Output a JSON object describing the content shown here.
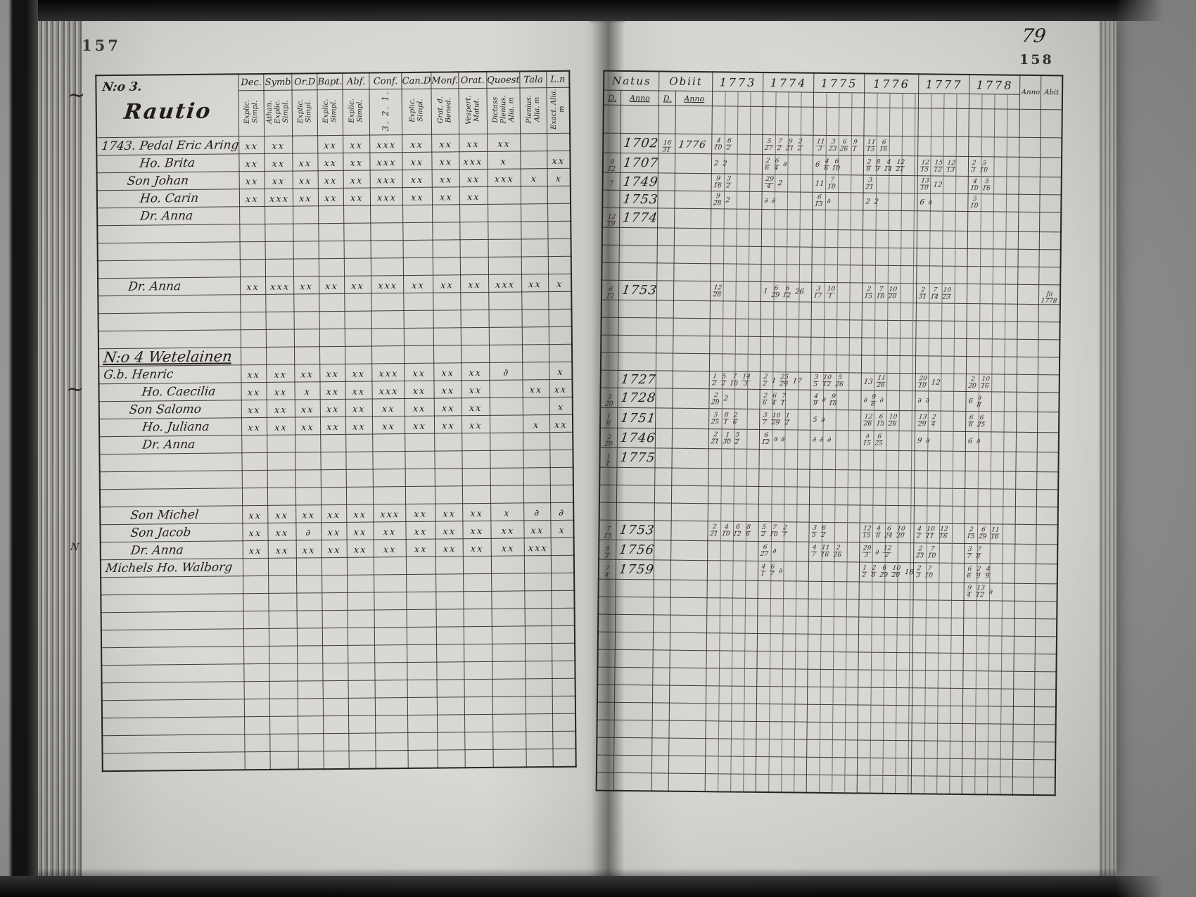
{
  "page_left": {
    "page_number": "157",
    "heading": {
      "no": "N:o 3.",
      "family": "Rautio"
    },
    "columns": [
      {
        "label": "Dec.",
        "sub": "Explic. Simpl."
      },
      {
        "label": "Symb",
        "sub": "Athan. Explic. Simpl."
      },
      {
        "label": "Or.D",
        "sub": "Explic. Simpl."
      },
      {
        "label": "Bapt.",
        "sub": "Explic. Simpl."
      },
      {
        "label": "Abf.",
        "sub": "Explic. Simpl."
      },
      {
        "label": "Conf.",
        "sub": "3. 2. 1.",
        "big": true
      },
      {
        "label": "Can.D",
        "sub": "Explic. Simpl."
      },
      {
        "label": "Monf.",
        "sub": "Grat. d. Bened."
      },
      {
        "label": "Orat.",
        "sub": "Vespert. Matut."
      },
      {
        "label": "Quoest",
        "sub": "Dictass Plenius. Alia. m"
      },
      {
        "label": "Tala",
        "sub": "Plenius. Alia. m"
      },
      {
        "label": "L.n",
        "sub": "Exact. Alia. m"
      }
    ],
    "margin_flourishes": [
      "~",
      "~",
      "N"
    ]
  },
  "page_right": {
    "page_number_hand": "79",
    "page_number": "158",
    "natus_label": "Natus",
    "obiit_label": "Obiit",
    "d_label": "D.",
    "anno_label": "Anno",
    "years": [
      "1773",
      "1774",
      "1775",
      "1776",
      "1777",
      "1778"
    ],
    "tail_labels": [
      "Anno",
      "Abit"
    ]
  },
  "rows": [
    {
      "n": "1743. Pedal Eric Aring",
      "i": 0,
      "m": [
        "xx",
        "xx",
        "",
        "xx",
        "xx",
        "xxx",
        "xx",
        "xx",
        "xx",
        "xx",
        "",
        ""
      ],
      "na": "1702",
      "od": "16/31",
      "oa": "1776",
      "y": [
        "4/10 6/2",
        "5/27 7/2 9/21 2/2",
        "11/3 3/23 6/26 9/1",
        "11/15 6/16",
        "",
        ""
      ]
    },
    {
      "n": "Ho. Brita",
      "i": 2,
      "m": [
        "xx",
        "xx",
        "xx",
        "xx",
        "xx",
        "xxx",
        "xx",
        "xx",
        "xxx",
        "x",
        "",
        "xx"
      ],
      "nd": "9/12",
      "na": "1707",
      "y": [
        "2 2",
        "2/6 6/4 ∂",
        "6 4/6 6/10",
        "2/8 8/9 4/14 12/21",
        "12/15 15/12 12/13",
        "2/3 5/10"
      ]
    },
    {
      "n": "Son Johan",
      "i": 1,
      "m": [
        "xx",
        "xx",
        "xx",
        "xx",
        "xx",
        "xxx",
        "xx",
        "xx",
        "xx",
        "xxx",
        "x",
        "x"
      ],
      "nd": "7",
      "na": "1749",
      "y": [
        "9/16 3/2",
        "29/4 2",
        "11 7/10",
        "3/21",
        "13/10 12",
        "4/10 5/16"
      ]
    },
    {
      "n": "Ho. Carin",
      "i": 2,
      "m": [
        "xx",
        "xxx",
        "xx",
        "xx",
        "xx",
        "xxx",
        "xx",
        "xx",
        "xx",
        "",
        "",
        ""
      ],
      "na": "1753",
      "y": [
        "9/28 2",
        "∂ ∂",
        "6/13 ∂",
        "2 2",
        "6 ∂",
        "5/10"
      ]
    },
    {
      "n": "Dr. Anna",
      "i": 2,
      "nd": "12/19",
      "na": "1774",
      "y": [
        "",
        "",
        "",
        "",
        "",
        ""
      ]
    },
    {},
    {},
    {},
    {
      "n": "Dr. Anna",
      "i": 1,
      "m": [
        "xx",
        "xxx",
        "xx",
        "xx",
        "xx",
        "xxx",
        "xx",
        "xx",
        "xx",
        "xxx",
        "xx",
        "x"
      ],
      "nd": "6/12",
      "na": "1753",
      "y": [
        "12/26",
        "1 6/29 6/12 26",
        "3/17 10/1",
        "2/15 7/18 10/20",
        "2/31 7/14 10/23",
        ""
      ],
      "ab": "fa/1778"
    },
    {},
    {},
    {},
    {
      "n": "N:o 4 Wetelainen",
      "i": 0,
      "h": true
    },
    {
      "n": "G.b. Henric",
      "i": 0,
      "m": [
        "xx",
        "xx",
        "xx",
        "xx",
        "xx",
        "xxx",
        "xx",
        "xx",
        "xx",
        "∂",
        "",
        "x"
      ],
      "na": "1727",
      "y": [
        "1/2 5/2 7/10 14/3",
        "2/2 1 25/29 17",
        "3/5 10/12 5/26",
        "13 11/26",
        "20/10 12",
        "2/20 10/16"
      ]
    },
    {
      "n": "Ho. Caecilia",
      "i": 2,
      "m": [
        "xx",
        "xx",
        "x",
        "xx",
        "xx",
        "xxx",
        "xx",
        "xx",
        "xx",
        "",
        "xx",
        "xx"
      ],
      "nd": "3/20",
      "na": "1728",
      "y": [
        "2/29 2",
        "2/6 6/4 7/1",
        "4/9 ∂ 9/18",
        "∂ 9/8 ∂",
        "∂ ∂",
        "6 ∂/8"
      ]
    },
    {
      "n": "Son Salomo",
      "i": 1,
      "m": [
        "xx",
        "xx",
        "xx",
        "xx",
        "xx",
        "xx",
        "xx",
        "xx",
        "xx",
        "",
        "",
        "x"
      ],
      "nd": "1/6",
      "na": "1751",
      "y": [
        "5/25 8/1 2/6",
        "3/7 10/29 1/2",
        "5 ∂",
        "12/26 6/15 10/26",
        "13/29 2/4",
        "6/8 6/25"
      ]
    },
    {
      "n": "Ho. Juliana",
      "i": 2,
      "m": [
        "xx",
        "xx",
        "xx",
        "xx",
        "xx",
        "xx",
        "xx",
        "xx",
        "xx",
        "",
        "x",
        "xx"
      ],
      "nd": "2/20",
      "na": "1746",
      "y": [
        "2/21 1/30 5/2",
        "6/12 ∂ ∂",
        "∂ ∂ ∂",
        "∂/15 6/25",
        "9 ∂",
        "6 ∂"
      ]
    },
    {
      "n": "Dr. Anna",
      "i": 2,
      "nd": "1/1",
      "na": "1775",
      "y": [
        "",
        "",
        "",
        "",
        "",
        ""
      ]
    },
    {},
    {},
    {},
    {
      "n": "Son Michel",
      "i": 1,
      "m": [
        "xx",
        "xx",
        "xx",
        "xx",
        "xx",
        "xxx",
        "xx",
        "xx",
        "xx",
        "x",
        "∂",
        "∂"
      ],
      "nd": "7/13",
      "na": "1753",
      "y": [
        "2/21 4/10 6/12 8/6",
        "5/2 7/10 2/7",
        "3/5 6/2",
        "12/15 4/8 6/24 10/20",
        "4/2 10/11 12/16",
        "2/15 6/29 11/16"
      ]
    },
    {
      "n": "Son Jacob",
      "i": 1,
      "m": [
        "xx",
        "xx",
        "∂",
        "xx",
        "xx",
        "xx",
        "xx",
        "xx",
        "xx",
        "xx",
        "xx",
        "x"
      ],
      "nd": "8/3",
      "na": "1756",
      "y": [
        "",
        "6/27 ∂",
        "4/7 11/16 2/26",
        "29/3 ∂ 12/2",
        "2/23 7/10",
        "3/7 7/8"
      ]
    },
    {
      "n": "Dr. Anna",
      "i": 1,
      "m": [
        "xx",
        "xx",
        "xx",
        "xx",
        "xx",
        "xx",
        "xx",
        "xx",
        "xx",
        "xx",
        "xxx",
        ""
      ],
      "nd": "7/4",
      "na": "1759",
      "y": [
        "",
        "4/1 6/7 ∂",
        "",
        "1/2 2/8 6/29 10/20 18",
        "2/3 7/10",
        "6/6 2/9 4/9"
      ]
    },
    {
      "n": "Michels Ho. Walborg",
      "i": 0,
      "y": [
        "",
        "",
        "",
        "",
        "",
        "9/4 13/12 ∂"
      ]
    },
    {},
    {},
    {},
    {},
    {},
    {},
    {},
    {},
    {},
    {},
    {}
  ]
}
